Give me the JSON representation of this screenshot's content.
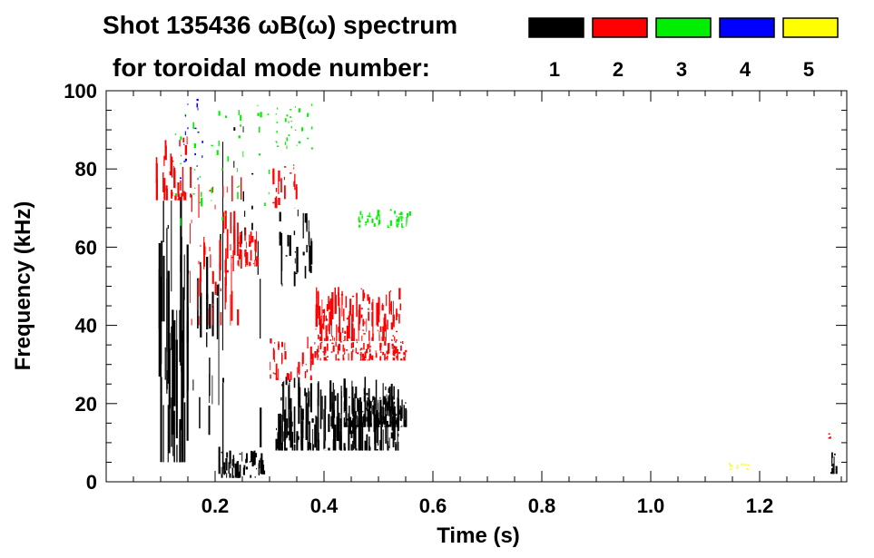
{
  "chart_data": {
    "type": "spectrogram",
    "title_line1": "Shot 135436 ωB(ω) spectrum",
    "title_line2": "for toroidal mode number:",
    "xlabel": "Time (s)",
    "ylabel": "Frequency (kHz)",
    "xlim": [
      0.0,
      1.36
    ],
    "ylim": [
      0,
      100
    ],
    "x_ticks": [
      0.2,
      0.4,
      0.6,
      0.8,
      1.0,
      1.2
    ],
    "x_tick_labels": [
      "0.2",
      "0.4",
      "0.6",
      "0.8",
      "1.0",
      "1.2"
    ],
    "y_ticks": [
      0,
      20,
      40,
      60,
      80,
      100
    ],
    "y_tick_labels": [
      "0",
      "20",
      "40",
      "60",
      "80",
      "100"
    ],
    "legend": [
      {
        "label": "1",
        "color": "#000000"
      },
      {
        "label": "2",
        "color": "#ff0000"
      },
      {
        "label": "3",
        "color": "#00ee00"
      },
      {
        "label": "4",
        "color": "#0000ff"
      },
      {
        "label": "5",
        "color": "#ffff00"
      }
    ],
    "features": [
      {
        "mode": 1,
        "t0": 0.09,
        "t1": 0.15,
        "f0": 5,
        "f1": 73,
        "density": 0.55
      },
      {
        "mode": 1,
        "t0": 0.15,
        "t1": 0.21,
        "f0": 12,
        "f1": 68,
        "density": 0.25
      },
      {
        "mode": 1,
        "t0": 0.205,
        "t1": 0.215,
        "f0": 2,
        "f1": 100,
        "density": 0.6
      },
      {
        "mode": 1,
        "t0": 0.21,
        "t1": 0.29,
        "f0": 1,
        "f1": 8,
        "density": 0.55
      },
      {
        "mode": 1,
        "t0": 0.23,
        "t1": 0.275,
        "f0": 50,
        "f1": 95,
        "density": 0.08
      },
      {
        "mode": 1,
        "t0": 0.305,
        "t1": 0.385,
        "f0": 50,
        "f1": 70,
        "density": 0.35
      },
      {
        "mode": 1,
        "t0": 0.31,
        "t1": 0.54,
        "f0": 8,
        "f1": 27,
        "density": 0.6
      },
      {
        "mode": 1,
        "t0": 0.435,
        "t1": 0.55,
        "f0": 14,
        "f1": 22,
        "density": 0.7
      },
      {
        "mode": 1,
        "t0": 0.275,
        "t1": 0.285,
        "f0": 8,
        "f1": 85,
        "density": 0.2
      },
      {
        "mode": 1,
        "t0": 1.33,
        "t1": 1.34,
        "f0": 2,
        "f1": 8,
        "density": 0.8
      },
      {
        "mode": 2,
        "t0": 0.09,
        "t1": 0.155,
        "f0": 72,
        "f1": 89,
        "density": 0.4
      },
      {
        "mode": 2,
        "t0": 0.15,
        "t1": 0.25,
        "f0": 40,
        "f1": 80,
        "density": 0.22
      },
      {
        "mode": 2,
        "t0": 0.24,
        "t1": 0.28,
        "f0": 55,
        "f1": 65,
        "density": 0.35
      },
      {
        "mode": 2,
        "t0": 0.305,
        "t1": 0.35,
        "f0": 70,
        "f1": 82,
        "density": 0.35
      },
      {
        "mode": 2,
        "t0": 0.3,
        "t1": 0.38,
        "f0": 26,
        "f1": 38,
        "density": 0.3
      },
      {
        "mode": 2,
        "t0": 0.38,
        "t1": 0.54,
        "f0": 36,
        "f1": 50,
        "density": 0.5
      },
      {
        "mode": 2,
        "t0": 0.38,
        "t1": 0.55,
        "f0": 31,
        "f1": 36,
        "density": 0.4
      },
      {
        "mode": 2,
        "t0": 1.325,
        "t1": 1.33,
        "f0": 11,
        "f1": 13,
        "density": 0.9
      },
      {
        "mode": 3,
        "t0": 0.12,
        "t1": 0.3,
        "f0": 65,
        "f1": 98,
        "density": 0.06
      },
      {
        "mode": 3,
        "t0": 0.31,
        "t1": 0.38,
        "f0": 85,
        "f1": 98,
        "density": 0.08
      },
      {
        "mode": 3,
        "t0": 0.46,
        "t1": 0.56,
        "f0": 65,
        "f1": 70,
        "density": 0.3
      },
      {
        "mode": 4,
        "t0": 0.12,
        "t1": 0.18,
        "f0": 75,
        "f1": 98,
        "density": 0.05
      },
      {
        "mode": 5,
        "t0": 1.14,
        "t1": 1.18,
        "f0": 3,
        "f1": 5,
        "density": 0.2
      }
    ]
  }
}
